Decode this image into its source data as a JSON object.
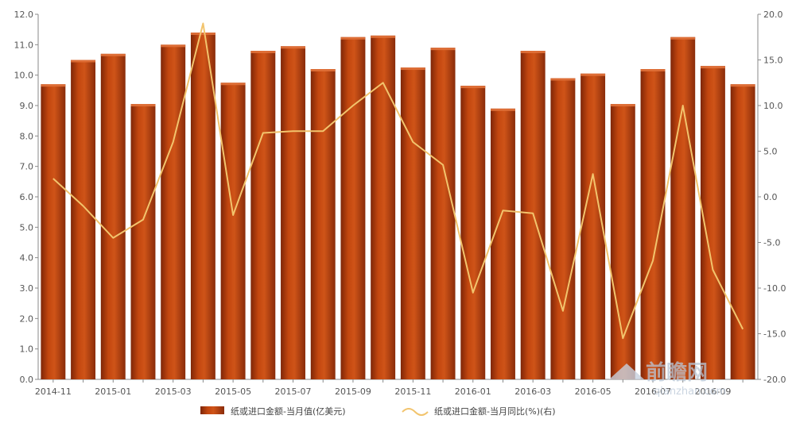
{
  "chart_data": {
    "type": "bar",
    "categories": [
      "2014-11",
      "2014-12",
      "2015-01",
      "2015-02",
      "2015-03",
      "2015-04",
      "2015-05",
      "2015-06",
      "2015-07",
      "2015-08",
      "2015-09",
      "2015-10",
      "2015-11",
      "2015-12",
      "2016-01",
      "2016-02",
      "2016-03",
      "2016-04",
      "2016-05",
      "2016-06",
      "2016-07",
      "2016-08",
      "2016-09",
      "2016-10"
    ],
    "x_tick_labels": [
      "2014-11",
      "2015-01",
      "2015-03",
      "2015-05",
      "2015-07",
      "2015-09",
      "2015-11",
      "2016-01",
      "2016-03",
      "2016-05",
      "2016-07",
      "2016-09"
    ],
    "series": [
      {
        "name": "纸或进口金额-当月值(亿美元)",
        "type": "bar",
        "axis": "left",
        "color": "#b8400f",
        "values": [
          9.7,
          10.5,
          10.7,
          9.05,
          11.0,
          11.4,
          9.75,
          10.8,
          10.95,
          10.2,
          11.25,
          11.3,
          10.25,
          10.9,
          9.65,
          8.9,
          10.8,
          9.9,
          10.05,
          9.05,
          10.2,
          11.25,
          10.3,
          9.7
        ]
      },
      {
        "name": "纸或进口金额-当月同比(%)(右)",
        "type": "line",
        "axis": "right",
        "color": "#f2c46d",
        "values": [
          2.0,
          -1.0,
          -4.5,
          -2.5,
          6.0,
          19.0,
          -2.0,
          7.0,
          7.2,
          7.2,
          10.0,
          12.5,
          6.0,
          3.5,
          -10.5,
          -1.5,
          -1.8,
          -12.5,
          2.5,
          -15.5,
          -7.0,
          10.0,
          -8.0,
          -14.5
        ]
      }
    ],
    "y_left": {
      "ylim": [
        0,
        12
      ],
      "ticks": [
        "0.0",
        "1.0",
        "2.0",
        "3.0",
        "4.0",
        "5.0",
        "6.0",
        "7.0",
        "8.0",
        "9.0",
        "10.0",
        "11.0",
        "12.0"
      ]
    },
    "y_right": {
      "ylim": [
        -20,
        20
      ],
      "ticks": [
        "-20.0",
        "-15.0",
        "-10.0",
        "-5.0",
        "0.0",
        "5.0",
        "10.0",
        "15.0",
        "20.0"
      ]
    },
    "grid": false,
    "legend_position": "bottom-center"
  },
  "watermark": {
    "brand": "前瞻网",
    "site": "qianzhan.com"
  }
}
